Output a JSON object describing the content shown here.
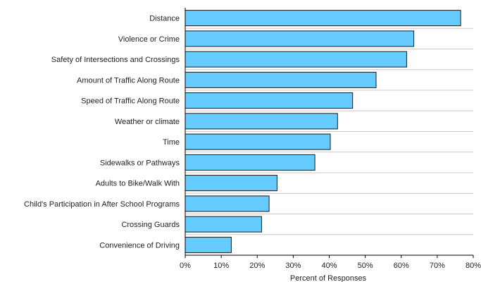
{
  "chart_data": {
    "type": "bar",
    "orientation": "horizontal",
    "categories": [
      "Distance",
      "Violence or Crime",
      "Safety of Intersections and Crossings",
      "Amount of Traffic Along Route",
      "Speed of Traffic Along Route",
      "Weather or climate",
      "Time",
      "Sidewalks or Pathways",
      "Adults to Bike/Walk With",
      "Child's Participation in After School Programs",
      "Crossing Guards",
      "Convenience of Driving"
    ],
    "values": [
      76.5,
      63.5,
      61.5,
      53,
      46.5,
      42.3,
      40.3,
      36,
      25.5,
      23.3,
      21.2,
      12.8
    ],
    "value_unit": "percent",
    "xlabel": "Percent of Responses",
    "ylabel": "",
    "xlim": [
      0,
      80
    ],
    "ticks": [
      "0%",
      "10%",
      "20%",
      "30%",
      "40%",
      "50%",
      "60%",
      "70%",
      "80%"
    ],
    "tick_values": [
      0,
      10,
      20,
      30,
      40,
      50,
      60,
      70,
      80
    ],
    "grid": "horizontal lines between bars",
    "colors": {
      "bar_fill": "#66ccff",
      "bar_stroke": "#1a1a1a",
      "grid": "#c8c8c8",
      "axis": "#000000"
    }
  }
}
